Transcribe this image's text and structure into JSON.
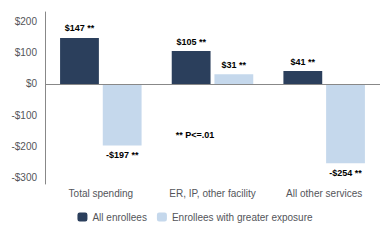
{
  "chart_data": {
    "type": "bar",
    "categories": [
      "Total spending",
      "ER, IP, other facility",
      "All other services"
    ],
    "series": [
      {
        "name": "All enrollees",
        "color": "#2B3F5C",
        "values": [
          147,
          105,
          41
        ],
        "value_labels": [
          "$147 **",
          "$105 **",
          "$41 **"
        ]
      },
      {
        "name": "Enrollees with greater exposure",
        "color": "#C5D8EC",
        "values": [
          -197,
          31,
          -254
        ],
        "value_labels": [
          "-$197 **",
          "$31 **",
          "-$254 **"
        ]
      }
    ],
    "ylim": [
      -320,
      230
    ],
    "yticks": [
      {
        "value": -300,
        "label": "-$300"
      },
      {
        "value": -200,
        "label": "-$200"
      },
      {
        "value": -100,
        "label": "-$100"
      },
      {
        "value": 0,
        "label": "$0"
      },
      {
        "value": 100,
        "label": "$100"
      },
      {
        "value": 200,
        "label": "$200"
      }
    ],
    "annotations": [
      "** P<=.01"
    ],
    "grid": false,
    "legend": "bottom",
    "data_labels": true
  }
}
